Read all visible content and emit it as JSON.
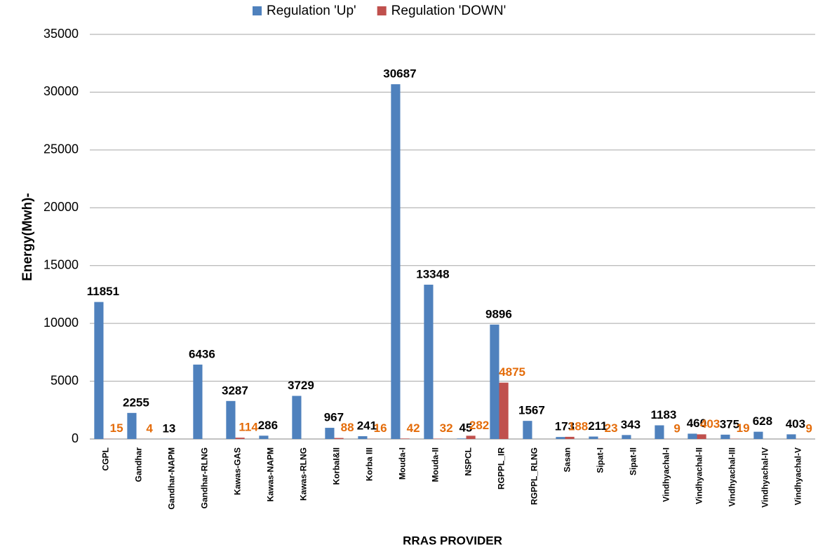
{
  "chart_data": {
    "type": "bar",
    "x_label": "RRAS PROVIDER",
    "y_label": "Energy(Mwh)-",
    "categories": [
      "CGPL",
      "Gandhar",
      "Gandhar-NAPM",
      "Gandhar-RLNG",
      "Kawas-GAS",
      "Kawas-NAPM",
      "Kawas-RLNG",
      "KorbaI&II",
      "Korba III",
      "Mouda-I",
      "Mouda-II",
      "NSPCL",
      "RGPPL_IR",
      "RGPPL_RLNG",
      "Sasan",
      "Sipat-I",
      "Sipat-II",
      "Vindhyachal-I",
      "Vindhyachal-II",
      "Vindhyachal-III",
      "Vindhyachal-IV",
      "Vindhyachal-V"
    ],
    "series": [
      {
        "name": "Regulation 'Up'",
        "color": "#4f81bd",
        "label_color": "#000000",
        "values": [
          11851,
          2255,
          13,
          6436,
          3287,
          286,
          3729,
          967,
          241,
          30687,
          13348,
          45,
          9896,
          1567,
          173,
          211,
          343,
          1183,
          460,
          375,
          628,
          403
        ]
      },
      {
        "name": "Regulation 'DOWN'",
        "color": "#c0504d",
        "label_color": "#e46c0a",
        "values": [
          15,
          4,
          null,
          null,
          114,
          null,
          null,
          88,
          16,
          42,
          32,
          282,
          4875,
          null,
          188,
          23,
          null,
          9,
          403,
          19,
          null,
          9
        ]
      }
    ],
    "ylim": [
      0,
      35000
    ],
    "yticks": [
      0,
      5000,
      10000,
      15000,
      20000,
      25000,
      30000,
      35000
    ],
    "grid": true,
    "legend": "top"
  }
}
